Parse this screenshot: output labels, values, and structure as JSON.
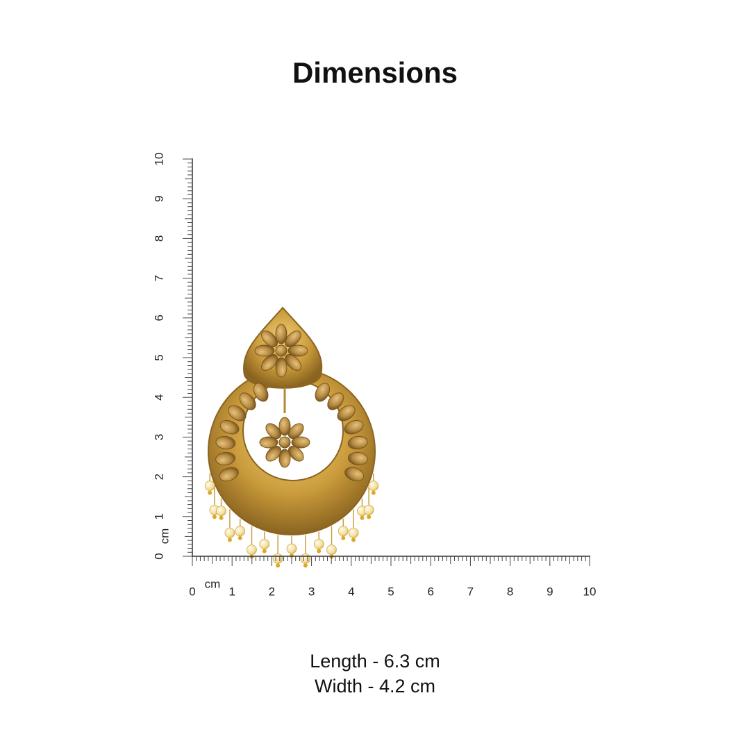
{
  "header": {
    "title": "Dimensions"
  },
  "ruler": {
    "vertical": {
      "unit": "cm",
      "labels": [
        0,
        1,
        2,
        3,
        4,
        5,
        6,
        7,
        8,
        9,
        10
      ]
    },
    "horizontal": {
      "unit": "cm",
      "labels": [
        0,
        1,
        2,
        3,
        4,
        5,
        6,
        7,
        8,
        9,
        10
      ]
    }
  },
  "dimensions": {
    "length": "Length - 6.3 cm",
    "width": "Width - 4.2 cm"
  }
}
